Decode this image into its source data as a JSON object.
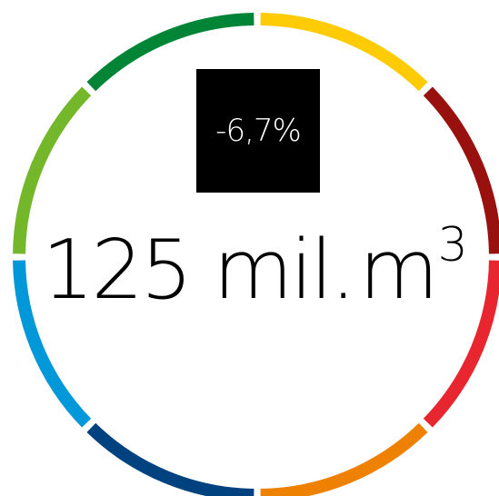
{
  "indicator": {
    "change": "-6,7%",
    "value": "125 mil.",
    "unit": "m",
    "unit_exponent": "3"
  },
  "ring": {
    "segment_colors": [
      "#FFCB05",
      "#98110E",
      "#E7262F",
      "#EE8100",
      "#00427F",
      "#0098D9",
      "#74B72A",
      "#008536"
    ]
  }
}
